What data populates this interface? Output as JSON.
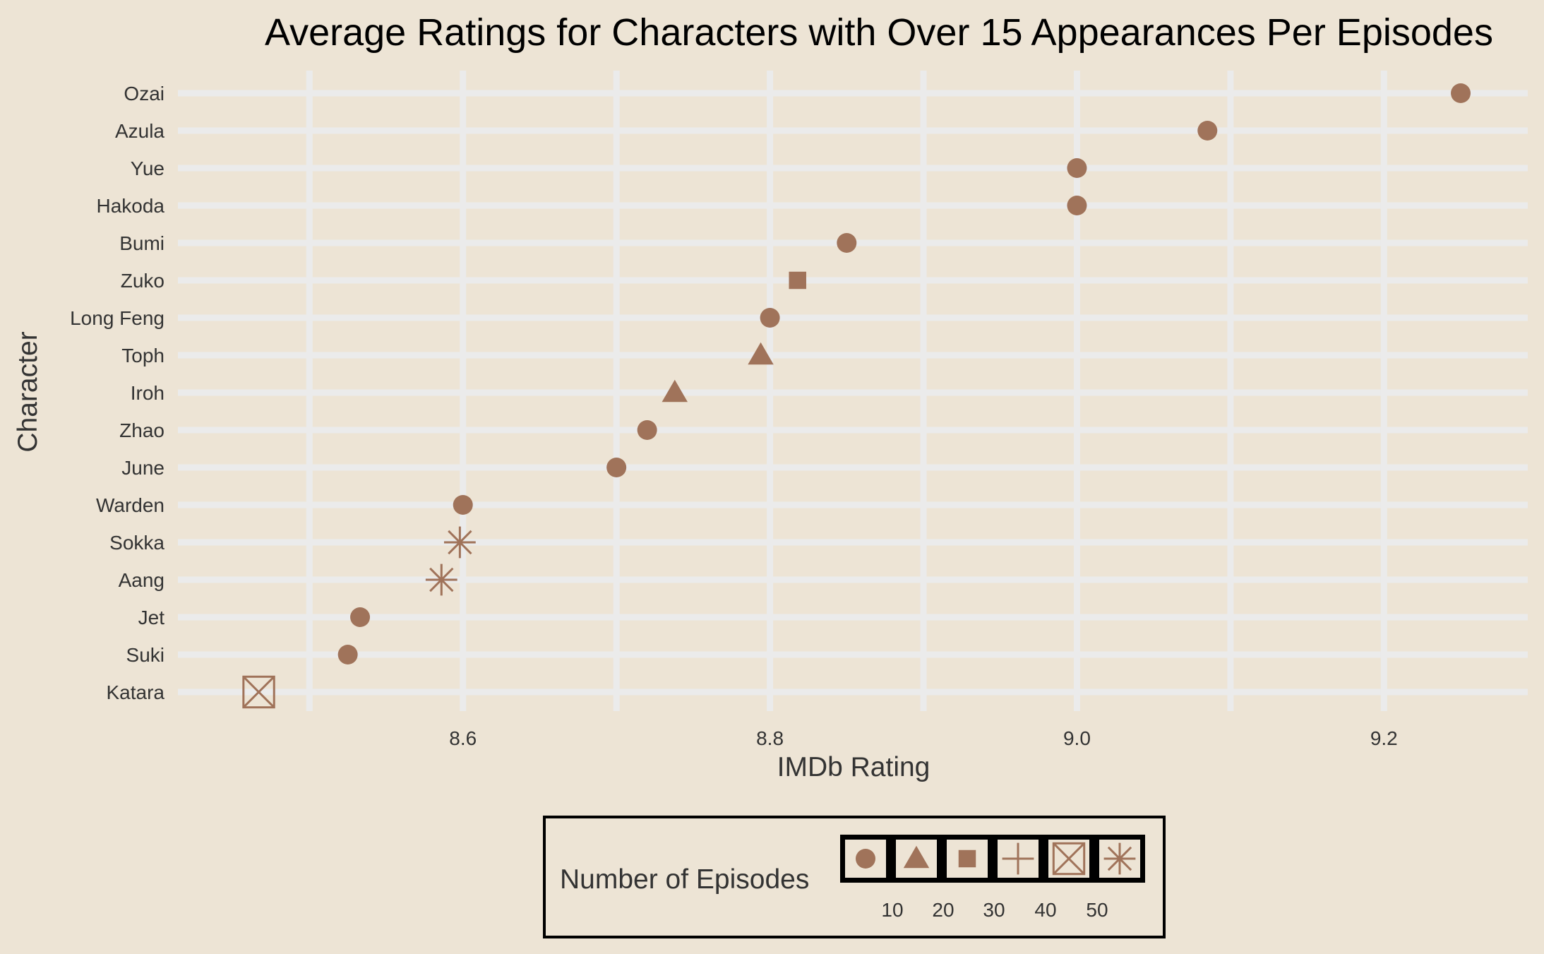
{
  "chart_data": {
    "type": "scatter",
    "title": "Average Ratings for Characters with Over 15 Appearances Per Episodes",
    "xlabel": "IMDb Rating",
    "ylabel": "Character",
    "xlim": [
      8.418,
      9.29
    ],
    "x_ticks": [
      "8.6",
      "8.8",
      "9.0",
      "9.2"
    ],
    "x_tick_values": [
      8.6,
      8.8,
      9.0,
      9.2
    ],
    "x_minor_gridlines": [
      8.5,
      8.7,
      8.9,
      9.1
    ],
    "grid": true,
    "grid_color": "#ebebeb",
    "marker_color": "#a0735a",
    "categories": [
      "Ozai",
      "Azula",
      "Yue",
      "Hakoda",
      "Bumi",
      "Zuko",
      "Long Feng",
      "Toph",
      "Iroh",
      "Zhao",
      "June",
      "Warden",
      "Sokka",
      "Aang",
      "Jet",
      "Suki",
      "Katara"
    ],
    "points": [
      {
        "character": "Ozai",
        "rating": 9.25,
        "shape": "circle"
      },
      {
        "character": "Azula",
        "rating": 9.085,
        "shape": "circle"
      },
      {
        "character": "Yue",
        "rating": 9.0,
        "shape": "circle"
      },
      {
        "character": "Hakoda",
        "rating": 9.0,
        "shape": "circle"
      },
      {
        "character": "Bumi",
        "rating": 8.85,
        "shape": "circle"
      },
      {
        "character": "Zuko",
        "rating": 8.818,
        "shape": "square"
      },
      {
        "character": "Long Feng",
        "rating": 8.8,
        "shape": "circle"
      },
      {
        "character": "Toph",
        "rating": 8.794,
        "shape": "triangle"
      },
      {
        "character": "Iroh",
        "rating": 8.738,
        "shape": "triangle"
      },
      {
        "character": "Zhao",
        "rating": 8.72,
        "shape": "circle"
      },
      {
        "character": "June",
        "rating": 8.7,
        "shape": "circle"
      },
      {
        "character": "Warden",
        "rating": 8.6,
        "shape": "circle"
      },
      {
        "character": "Sokka",
        "rating": 8.598,
        "shape": "asterisk"
      },
      {
        "character": "Aang",
        "rating": 8.586,
        "shape": "asterisk"
      },
      {
        "character": "Jet",
        "rating": 8.533,
        "shape": "circle"
      },
      {
        "character": "Suki",
        "rating": 8.525,
        "shape": "circle"
      },
      {
        "character": "Katara",
        "rating": 8.467,
        "shape": "boxed-x"
      }
    ],
    "legend": {
      "title": "Number of Episodes",
      "position": "bottom",
      "keys": [
        "circle",
        "triangle",
        "square",
        "plus",
        "boxed-x",
        "asterisk"
      ],
      "labels": [
        "10",
        "20",
        "30",
        "40",
        "50"
      ]
    }
  }
}
